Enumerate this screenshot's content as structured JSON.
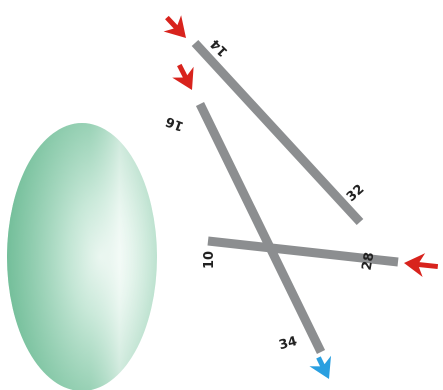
{
  "colors": {
    "background": "#ffffff",
    "segment": "#8c8e90",
    "arrow_in": "#d8231d",
    "arrow_out": "#2a9fe0",
    "lens_light": "#ffffff",
    "lens_mid": "#cdeadd",
    "lens_dark": "#5fb58c"
  },
  "segments": [
    {
      "id": "seg-14-32",
      "start_label": "14",
      "end_label": "32",
      "arrow_at_start": "red-arrow-icon"
    },
    {
      "id": "seg-16-34",
      "start_label": "16",
      "end_label": "34",
      "arrow_at_start": "red-arrow-icon",
      "arrow_at_end": "blue-arrow-icon"
    },
    {
      "id": "seg-28-10",
      "start_label": "28",
      "end_label": "10",
      "arrow_at_start": "red-arrow-icon"
    }
  ]
}
